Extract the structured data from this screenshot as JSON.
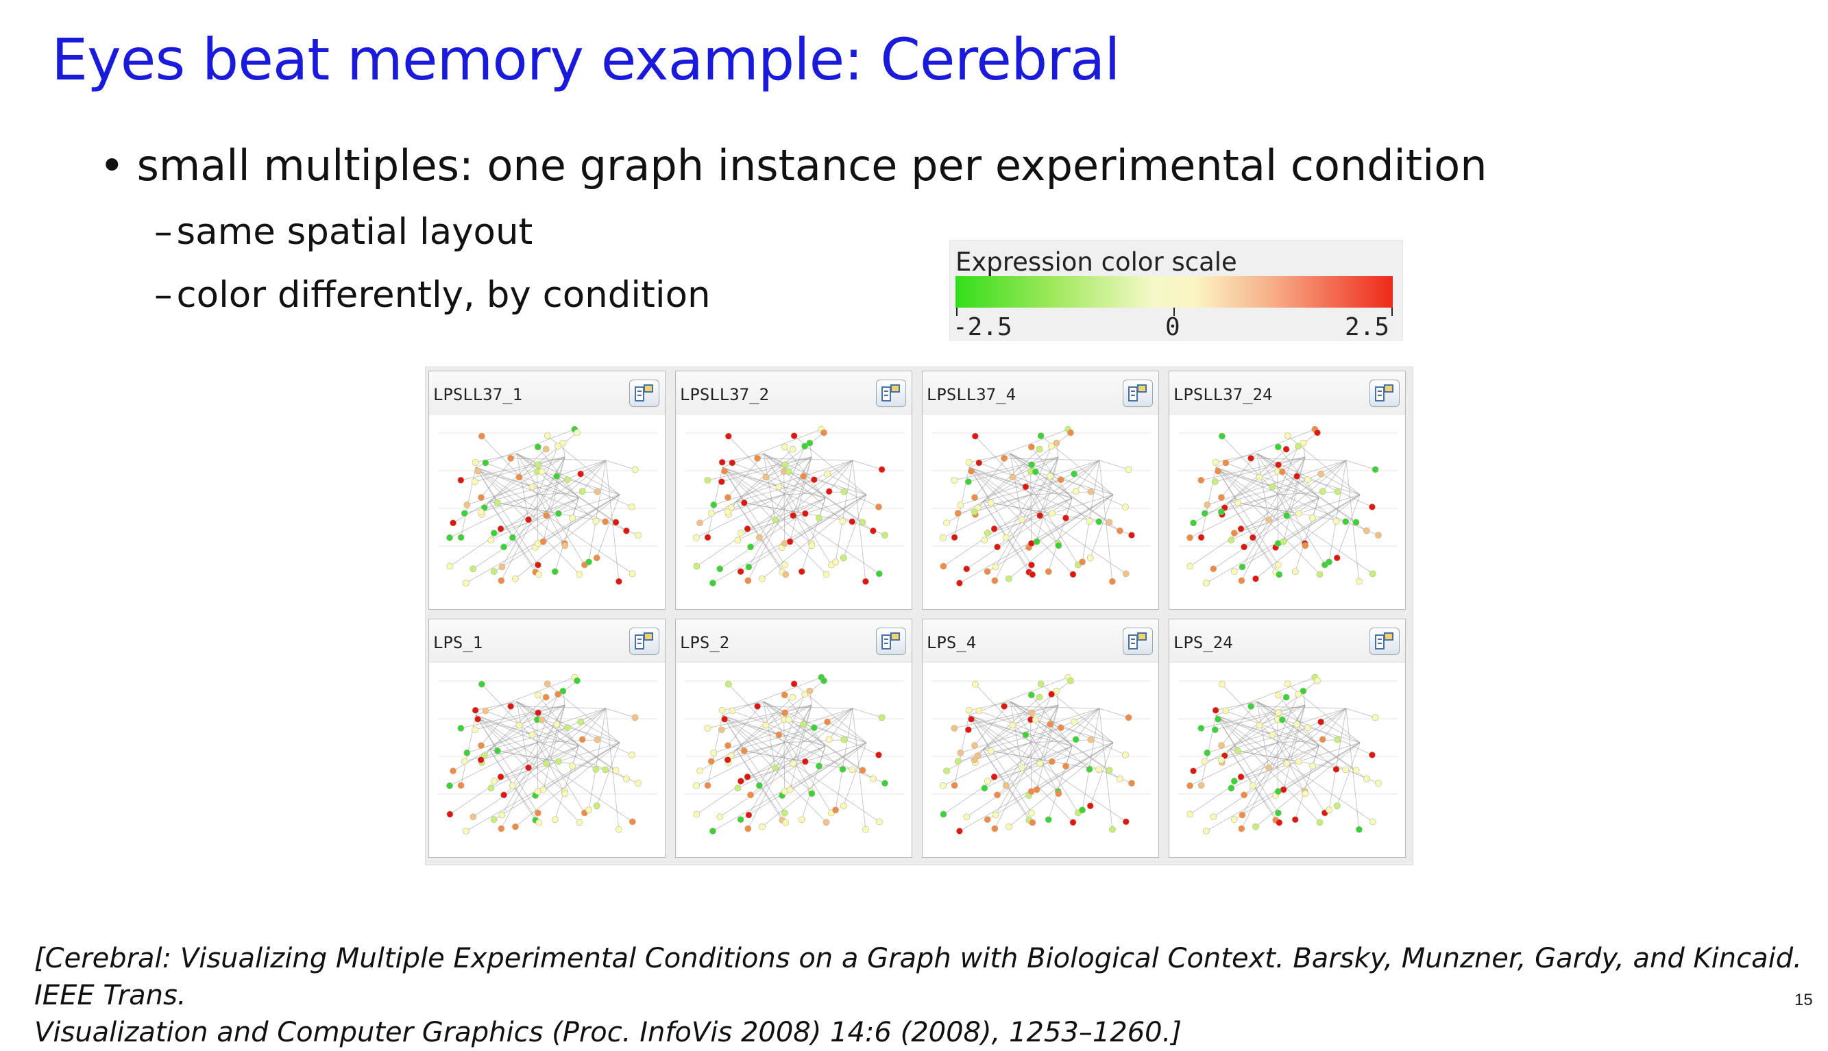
{
  "title": "Eyes beat memory example: Cerebral",
  "bullet": {
    "marker": "•",
    "text": "small multiples: one graph instance per experimental condition"
  },
  "sub_bullets": [
    {
      "marker": "–",
      "text": "same spatial layout"
    },
    {
      "marker": "–",
      "text": "color differently, by condition"
    }
  ],
  "color_scale": {
    "title": "Expression color scale",
    "ticks": [
      "-2.5",
      "0",
      "2.5"
    ],
    "colors": {
      "low": "#33dd1a",
      "mid": "#f4f8c8",
      "high": "#ee2a1a"
    }
  },
  "panels": [
    {
      "label": "LPSLL37_1"
    },
    {
      "label": "LPSLL37_2"
    },
    {
      "label": "LPSLL37_4"
    },
    {
      "label": "LPSLL37_24"
    },
    {
      "label": "LPS_1"
    },
    {
      "label": "LPS_2"
    },
    {
      "label": "LPS_4"
    },
    {
      "label": "LPS_24"
    }
  ],
  "node_colors": [
    "#e01515",
    "#f08a4a",
    "#f2c08a",
    "#fafab8",
    "#c6ee7a",
    "#3ad23a"
  ],
  "citation": [
    "[Cerebral: Visualizing Multiple Experimental Conditions on a Graph with Biological Context. Barsky, Munzner, Gardy, and Kincaid. IEEE Trans.",
    "Visualization and Computer Graphics (Proc. InfoVis 2008) 14:6 (2008), 1253–1260.]"
  ],
  "page_number": "15"
}
